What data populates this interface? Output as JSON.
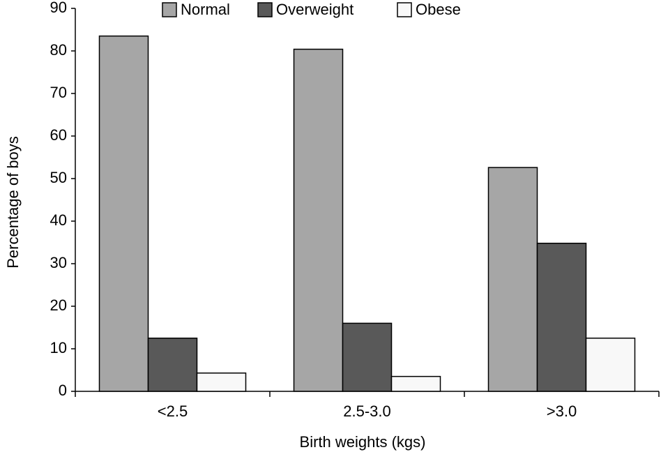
{
  "chart_data": {
    "type": "bar",
    "y_label": "Percentage of boys",
    "x_label": "Birth weights  (kgs)",
    "categories": [
      "<2.5",
      "2.5-3.0",
      ">3.0"
    ],
    "series": [
      {
        "name": "Normal",
        "color": "#a6a6a6",
        "values": [
          83.5,
          80.4,
          52.6
        ]
      },
      {
        "name": "Overweight",
        "color": "#595959",
        "values": [
          12.5,
          16,
          34.8
        ]
      },
      {
        "name": "Obese",
        "color": "#f8f8f8",
        "values": [
          4.3,
          3.5,
          12.5
        ]
      }
    ],
    "ylim": [
      0,
      90
    ],
    "yticks": [
      0,
      10,
      20,
      30,
      40,
      50,
      60,
      70,
      80,
      90
    ],
    "legend": "top",
    "grid": false
  }
}
